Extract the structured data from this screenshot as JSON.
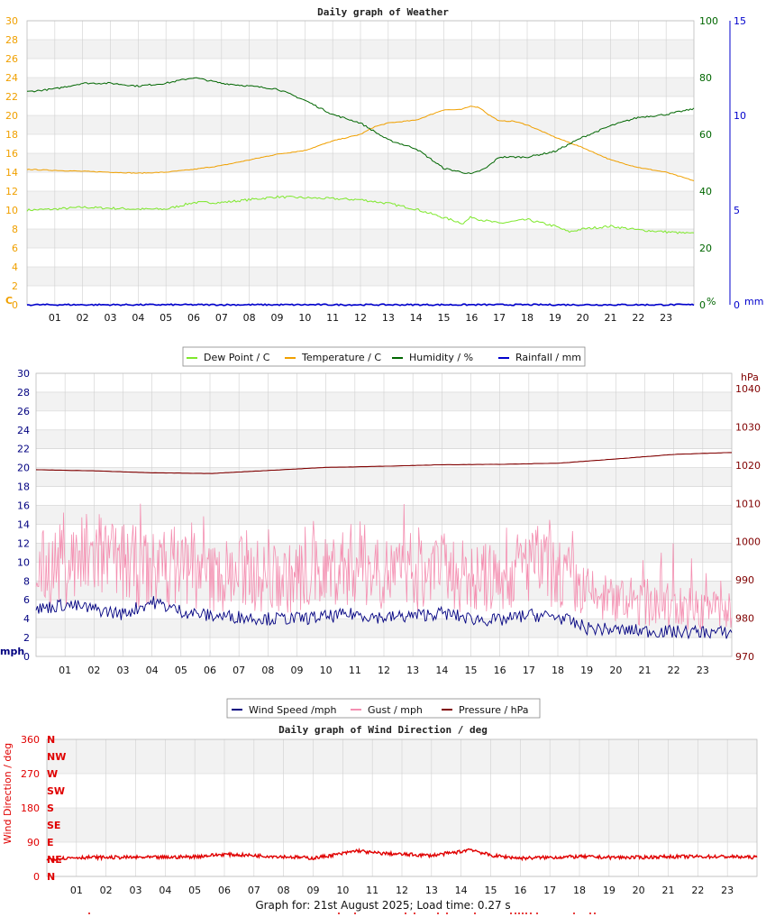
{
  "colors": {
    "dew": "#7ee82c",
    "temp": "#f0a000",
    "humidity": "#006600",
    "rain": "#0000cc",
    "wind": "#000080",
    "gust": "#f48fb1",
    "pressure": "#800000",
    "direction": "#e00000",
    "band": "#f2f2f2",
    "grid": "#d0d0d0"
  },
  "hours": [
    "01",
    "02",
    "03",
    "04",
    "05",
    "06",
    "07",
    "08",
    "09",
    "10",
    "11",
    "12",
    "13",
    "14",
    "15",
    "16",
    "17",
    "18",
    "19",
    "20",
    "21",
    "22",
    "23"
  ],
  "footer": "Graph for: 21st August 2025; Load time: 0.27 s",
  "chart_data": [
    {
      "type": "line",
      "title": "Daily graph of Weather",
      "x_unit": "hour",
      "xlim": [
        0,
        24
      ],
      "axes": {
        "left": {
          "unit": "C",
          "ticks": [
            "0",
            "2",
            "4",
            "6",
            "8",
            "10",
            "12",
            "14",
            "16",
            "18",
            "20",
            "22",
            "24",
            "26",
            "28",
            "30"
          ],
          "ylim": [
            0,
            30
          ]
        },
        "right1": {
          "unit": "%",
          "ticks": [
            "0",
            "20",
            "40",
            "60",
            "80",
            "100"
          ],
          "ylim": [
            0,
            100
          ]
        },
        "right2": {
          "unit": "mm",
          "ticks": [
            "0",
            "5",
            "10",
            "15"
          ],
          "ylim": [
            0,
            15
          ]
        }
      },
      "legend": {
        "position": "bottom",
        "entries": [
          "Dew Point / C",
          "Temperature / C",
          "Humidity / %",
          "Rainfall / mm"
        ]
      },
      "series": [
        {
          "name": "Dew Point / C",
          "axis": "left",
          "x": [
            0,
            1,
            2,
            3,
            4,
            5,
            6,
            7,
            8,
            9,
            10,
            11,
            12,
            13,
            14,
            15,
            15.7,
            16,
            16.3,
            17,
            18,
            19,
            19.5,
            20,
            21,
            22,
            23,
            24
          ],
          "y": [
            10,
            10.1,
            10.3,
            10.2,
            10.1,
            10.1,
            10.8,
            10.8,
            11.1,
            11.4,
            11.3,
            11.2,
            11.1,
            10.7,
            10.1,
            9.2,
            8.6,
            9.3,
            9,
            8.6,
            9,
            8.3,
            7.7,
            8,
            8.3,
            7.9,
            7.7,
            7.5
          ]
        },
        {
          "name": "Temperature / C",
          "axis": "left",
          "x": [
            0,
            1,
            2,
            3,
            4,
            5,
            6,
            7,
            8,
            9,
            10,
            11,
            12,
            12.5,
            13,
            14,
            15,
            15.6,
            16,
            16.3,
            16.6,
            17,
            17.5,
            18,
            19,
            20,
            21,
            22,
            23,
            24
          ],
          "y": [
            14.3,
            14.2,
            14.1,
            14,
            13.9,
            14,
            14.3,
            14.7,
            15.3,
            15.9,
            16.3,
            17.3,
            18,
            18.8,
            19.2,
            19.5,
            20.6,
            20.6,
            21,
            20.8,
            20.1,
            19.4,
            19.4,
            19,
            17.7,
            16.6,
            15.3,
            14.5,
            14,
            13.1
          ]
        },
        {
          "name": "Humidity / %",
          "axis": "right1",
          "x": [
            0,
            1,
            2,
            3,
            4,
            5,
            5.5,
            6,
            7,
            8,
            9,
            10,
            11,
            12,
            13,
            14,
            15,
            16,
            16.5,
            17,
            18,
            19,
            20,
            21,
            22,
            23,
            24
          ],
          "y": [
            75,
            76,
            78,
            78,
            77,
            78,
            79,
            80,
            78,
            77,
            76,
            72,
            67,
            64,
            58,
            55,
            48,
            46,
            48,
            52,
            52,
            54,
            59,
            63,
            66,
            67,
            69
          ]
        },
        {
          "name": "Rainfall / mm",
          "axis": "right2",
          "x": [
            0,
            24
          ],
          "y": [
            0,
            0
          ]
        }
      ]
    },
    {
      "type": "line",
      "x_unit": "hour",
      "xlim": [
        0,
        24
      ],
      "axes": {
        "left": {
          "unit": "mph",
          "ticks": [
            "0",
            "2",
            "4",
            "6",
            "8",
            "10",
            "12",
            "14",
            "16",
            "18",
            "20",
            "22",
            "24",
            "26",
            "28",
            "30"
          ],
          "ylim": [
            0,
            30
          ]
        },
        "right": {
          "unit": "hPa",
          "ticks": [
            "970",
            "980",
            "990",
            "1000",
            "1010",
            "1020",
            "1030",
            "1040"
          ],
          "ylim": [
            970,
            1044
          ]
        }
      },
      "legend": {
        "position": "bottom",
        "entries": [
          "Wind Speed /mph",
          "Gust / mph",
          "Pressure / hPa"
        ]
      },
      "series": [
        {
          "name": "Wind Speed /mph",
          "axis": "left",
          "x": [
            0,
            1,
            2,
            3,
            4,
            5,
            6,
            7,
            8,
            9,
            10,
            11,
            12,
            13,
            14,
            15,
            16,
            17,
            18,
            19,
            20,
            21,
            22,
            23,
            24
          ],
          "y": [
            5,
            5.5,
            5,
            4.5,
            5.8,
            4.8,
            4.3,
            4.2,
            4,
            4,
            4.2,
            4.5,
            4.1,
            4.3,
            4.6,
            4,
            3.8,
            4.4,
            4.2,
            3,
            2.8,
            2.7,
            2.6,
            2.6,
            2.5
          ]
        },
        {
          "name": "Gust / mph",
          "axis": "left",
          "x": [
            0,
            1,
            2,
            3,
            4,
            5,
            6,
            7,
            8,
            9,
            10,
            11,
            12,
            13,
            14,
            15,
            16,
            17,
            18,
            19,
            20,
            21,
            22,
            23,
            24
          ],
          "y": [
            11,
            12,
            13,
            12,
            11,
            12,
            10,
            11,
            10,
            10,
            11,
            12,
            11,
            10,
            11,
            10,
            10,
            12,
            11,
            8,
            7,
            7,
            6.5,
            6,
            6
          ]
        },
        {
          "name": "Pressure / hPa",
          "axis": "right",
          "x": [
            0,
            2,
            4,
            6,
            8,
            10,
            12,
            14,
            16,
            18,
            20,
            22,
            24
          ],
          "y": [
            1018.8,
            1018.5,
            1018,
            1017.8,
            1018.6,
            1019.4,
            1019.7,
            1020.1,
            1020.2,
            1020.5,
            1021.6,
            1022.8,
            1023.3
          ]
        }
      ]
    },
    {
      "type": "scatter",
      "title": "Daily graph of Wind Direction / deg",
      "x_unit": "hour",
      "xlim": [
        0,
        24
      ],
      "axes": {
        "left": {
          "label": "Wind Direction / deg",
          "ticks": [
            "0",
            "90",
            "180",
            "270",
            "360"
          ],
          "ylim": [
            0,
            360
          ]
        },
        "compass": [
          "N",
          "NE",
          "E",
          "SE",
          "S",
          "SW",
          "W",
          "NW",
          "N"
        ]
      },
      "series": [
        {
          "name": "direction",
          "axis": "left",
          "x": [
            0,
            1,
            2,
            3,
            4,
            5,
            6,
            7,
            8,
            9,
            10,
            10.5,
            11,
            12,
            13,
            14,
            14.3,
            15,
            16,
            17,
            18,
            19,
            20,
            21,
            22,
            23,
            24
          ],
          "y": [
            45,
            50,
            50,
            50,
            50,
            52,
            58,
            55,
            52,
            48,
            60,
            68,
            62,
            58,
            55,
            65,
            72,
            55,
            48,
            50,
            52,
            50,
            50,
            52,
            52,
            52,
            50
          ]
        }
      ]
    }
  ]
}
